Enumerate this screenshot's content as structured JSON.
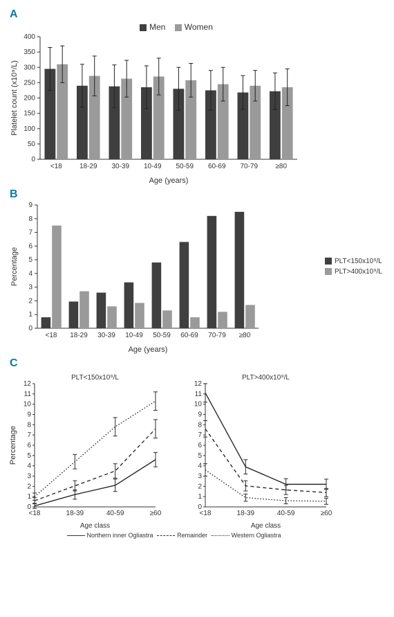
{
  "colors": {
    "men": "#3f3f3f",
    "women": "#9a9a9a",
    "low": "#3f3f3f",
    "high": "#9a9a9a",
    "axis": "#333333",
    "err": "#222222",
    "panel": "#0b7aa3",
    "bg": "#ffffff"
  },
  "ageCats": [
    "<18",
    "18-29",
    "30-39",
    "10-49",
    "50-59",
    "60-69",
    "70-79",
    "≥80"
  ],
  "ageCatsB": [
    "<18",
    "18-29",
    "30-39",
    "10-49",
    "50-59",
    "60-69",
    "70-79",
    "≥80"
  ],
  "ageClass": [
    "<18",
    "18-39",
    "40-59",
    "≥60"
  ],
  "panelA": {
    "label": "A",
    "legend": {
      "men": "Men",
      "women": "Women"
    },
    "ylabel": "Platelet count (x10⁹/L)",
    "xlabel": "Age (years)",
    "ylim": [
      0,
      400
    ],
    "ytick": 50,
    "men": {
      "values": [
        295,
        240,
        238,
        235,
        230,
        225,
        218,
        222
      ],
      "err": [
        70,
        70,
        70,
        70,
        70,
        65,
        55,
        60
      ]
    },
    "women": {
      "values": [
        310,
        272,
        263,
        270,
        258,
        245,
        240,
        235
      ],
      "err": [
        60,
        65,
        60,
        60,
        55,
        55,
        50,
        60
      ]
    },
    "bar_width": 0.34
  },
  "panelB": {
    "label": "B",
    "ylabel": "Percentage",
    "xlabel": "Age (years)",
    "ylim": [
      0,
      9
    ],
    "ytick": 1,
    "series": {
      "lowLabel": "PLT<150x10⁹/L",
      "highLabel": "PLT>400x10⁹/L",
      "low": [
        0.8,
        1.95,
        2.6,
        3.35,
        4.8,
        6.3,
        8.2,
        8.5
      ],
      "high": [
        7.5,
        2.7,
        1.6,
        1.85,
        1.3,
        0.8,
        1.2,
        1.7
      ]
    },
    "bar_width": 0.34
  },
  "panelC": {
    "label": "C",
    "ylabel": "Percentage",
    "xlabel": "Age class",
    "left": {
      "title": "PLT<150x10⁹/L",
      "ylim": [
        0,
        12
      ],
      "ytick": 1,
      "northern": [
        0.1,
        1.2,
        2.1,
        4.6
      ],
      "remainder": [
        0.6,
        2.05,
        3.5,
        7.6
      ],
      "western": [
        1.0,
        4.4,
        7.8,
        10.3
      ],
      "err": {
        "northern": [
          0.25,
          0.45,
          0.6,
          0.7
        ],
        "remainder": [
          0.3,
          0.5,
          0.7,
          0.9
        ],
        "western": [
          0.35,
          0.7,
          0.9,
          0.9
        ]
      }
    },
    "right": {
      "title": "PLT>400x10⁹/L",
      "ylim": [
        0,
        12
      ],
      "ytick": 1,
      "northern": [
        11.1,
        3.9,
        2.2,
        2.2
      ],
      "remainder": [
        7.6,
        2.05,
        1.65,
        1.4
      ],
      "western": [
        3.6,
        0.9,
        0.6,
        0.55
      ],
      "err": {
        "northern": [
          0.9,
          0.7,
          0.55,
          0.5
        ],
        "remainder": [
          0.8,
          0.5,
          0.45,
          0.4
        ],
        "western": [
          0.6,
          0.35,
          0.3,
          0.3
        ]
      }
    },
    "legend": {
      "northern": "Northern inner Ogliastra",
      "remainder": "Remainder",
      "western": "Western Ogliastra"
    }
  }
}
